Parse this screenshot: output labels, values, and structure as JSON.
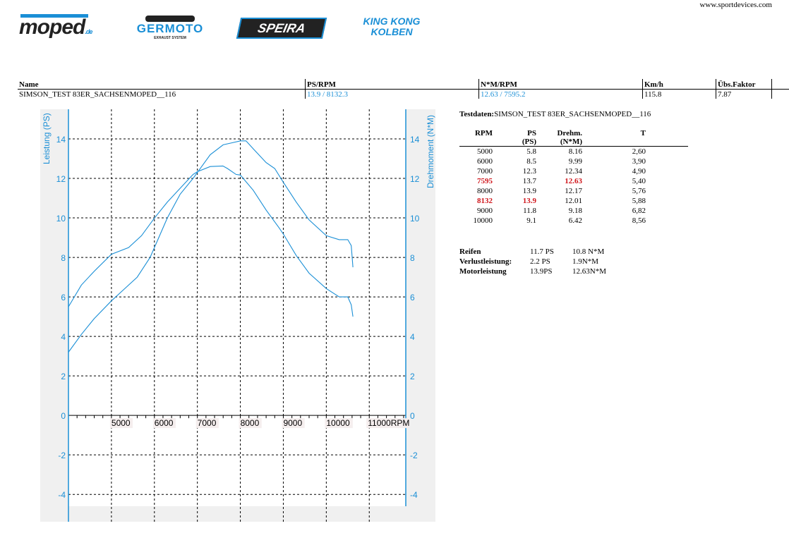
{
  "header": {
    "website": "www.sportdevices.com",
    "logos": {
      "moped": "moped",
      "moped_suffix": ".de",
      "germoto": "GERMOTO",
      "germoto_sub": "EXHAUST SYSTEM",
      "speira": "SPEIRA",
      "kingkong": "KING KONG KOLBEN"
    }
  },
  "summary": {
    "headers": [
      "Name",
      "PS/RPM",
      "N*M/RPM",
      "Km/h",
      "Übs.Faktor"
    ],
    "values": [
      "SIMSON_TEST 83ER_SACHSENMOPED__116",
      "13.9 / 8132.3",
      "12.63 / 7595.2",
      "115.8",
      "7.87"
    ]
  },
  "testdaten": {
    "label": "Testdaten:",
    "name": "SIMSON_TEST 83ER_SACHSENMOPED__116",
    "headers": [
      [
        "RPM",
        ""
      ],
      [
        "PS",
        "(PS)"
      ],
      [
        "Drehm.",
        "(N*M)"
      ],
      [
        "T",
        ""
      ]
    ],
    "rows": [
      [
        "5000",
        "5.8",
        "8.16",
        "2,60"
      ],
      [
        "6000",
        "8.5",
        "9.99",
        "3,90"
      ],
      [
        "7000",
        "12.3",
        "12.34",
        "4,90"
      ],
      [
        "7595",
        "13.7",
        "12.63",
        "5,40"
      ],
      [
        "8000",
        "13.9",
        "12.17",
        "5,76"
      ],
      [
        "8132",
        "13.9",
        "12.01",
        "5,88"
      ],
      [
        "9000",
        "11.8",
        "9.18",
        "6,82"
      ],
      [
        "10000",
        "9.1",
        "6.42",
        "8,56"
      ]
    ],
    "highlight": {
      "3": [
        0,
        2
      ],
      "5": [
        0,
        1
      ]
    },
    "losses": [
      [
        "Reifen",
        "11.7 PS",
        "10.8 N*M"
      ],
      [
        "Verlustleistung:",
        "2.2 PS",
        "1.9N*M"
      ],
      [
        "Motorleistung",
        "13.9PS",
        "12.63N*M"
      ]
    ]
  },
  "chart_data": {
    "type": "line",
    "ylabel_left": "Leistung (PS)",
    "ylabel_right": "Drehmoment (N*M)",
    "x_unit": "RPM",
    "xlim": [
      4000,
      11850
    ],
    "ylim": [
      -4.6,
      15.5
    ],
    "grid": true,
    "color": "#1a8fd6",
    "xticks": [
      5000,
      6000,
      7000,
      8000,
      9000,
      10000,
      11000
    ],
    "yticks": [
      -4,
      -2,
      0,
      2,
      4,
      6,
      8,
      10,
      12,
      14
    ],
    "series": [
      {
        "x": [
          4000,
          4300,
          4600,
          5000,
          5300,
          5600,
          5900,
          6000,
          6300,
          6600,
          6900,
          7000,
          7300,
          7600,
          7800,
          8000,
          8132,
          8300,
          8600,
          8800,
          9000,
          9300,
          9600,
          10000,
          10300,
          10500,
          10580,
          10620
        ],
        "y": [
          3.2,
          4.1,
          4.9,
          5.8,
          6.4,
          7.0,
          8.0,
          8.5,
          10.0,
          11.2,
          12.0,
          12.3,
          13.2,
          13.7,
          13.8,
          13.9,
          13.9,
          13.5,
          12.8,
          12.5,
          11.8,
          10.8,
          9.9,
          9.1,
          8.9,
          8.9,
          8.6,
          7.5
        ]
      },
      {
        "x": [
          4000,
          4300,
          4600,
          5000,
          5400,
          5700,
          6000,
          6300,
          6600,
          6900,
          7000,
          7300,
          7595,
          7700,
          7900,
          8000,
          8300,
          8600,
          8900,
          9000,
          9300,
          9600,
          10000,
          10300,
          10500,
          10580,
          10620
        ],
        "y": [
          5.5,
          6.6,
          7.3,
          8.16,
          8.5,
          9.1,
          9.99,
          10.8,
          11.5,
          12.2,
          12.34,
          12.6,
          12.63,
          12.5,
          12.2,
          12.17,
          11.4,
          10.4,
          9.5,
          9.18,
          8.1,
          7.2,
          6.42,
          6.0,
          6.0,
          5.6,
          5.0
        ]
      }
    ]
  }
}
